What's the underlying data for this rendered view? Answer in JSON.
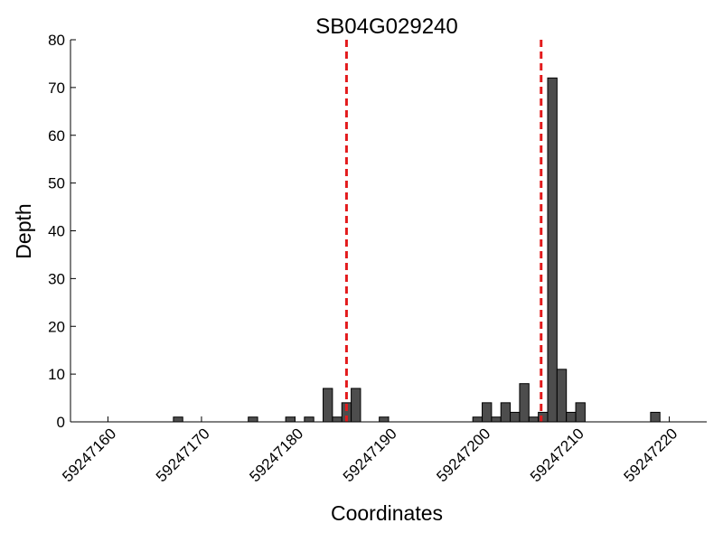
{
  "chart_data": {
    "type": "bar",
    "title": "SB04G029240",
    "xlabel": "Coordinates",
    "ylabel": "Depth",
    "xlim": [
      59247156,
      59247224
    ],
    "ylim": [
      0,
      80
    ],
    "xticks": [
      {
        "value": 59247160,
        "label": "59247160"
      },
      {
        "value": 59247170,
        "label": "59247170"
      },
      {
        "value": 59247180,
        "label": "59247180"
      },
      {
        "value": 59247190,
        "label": "59247190"
      },
      {
        "value": 59247200,
        "label": "59247200"
      },
      {
        "value": 59247210,
        "label": "59247210"
      },
      {
        "value": 59247220,
        "label": "59247220"
      }
    ],
    "yticks": [
      {
        "value": 0,
        "label": "0"
      },
      {
        "value": 10,
        "label": "10"
      },
      {
        "value": 20,
        "label": "20"
      },
      {
        "value": 30,
        "label": "30"
      },
      {
        "value": 40,
        "label": "40"
      },
      {
        "value": 50,
        "label": "50"
      },
      {
        "value": 60,
        "label": "60"
      },
      {
        "value": 70,
        "label": "70"
      },
      {
        "value": 80,
        "label": "80"
      }
    ],
    "x": [
      59247167,
      59247175,
      59247179,
      59247181,
      59247183,
      59247184,
      59247185,
      59247186,
      59247189,
      59247199,
      59247200,
      59247201,
      59247202,
      59247203,
      59247204,
      59247205,
      59247206,
      59247207,
      59247208,
      59247209,
      59247210,
      59247218
    ],
    "values": [
      1,
      1,
      1,
      1,
      7,
      1,
      4,
      7,
      1,
      1,
      4,
      1,
      4,
      2,
      8,
      1,
      2,
      72,
      11,
      2,
      4,
      2
    ],
    "markers": [
      59247185.5,
      59247206.3
    ],
    "grid": false,
    "colors": {
      "bar": "#4d4d4d",
      "bar_edge": "#000000",
      "marker": "#e31a1c",
      "axis": "#000000"
    }
  }
}
